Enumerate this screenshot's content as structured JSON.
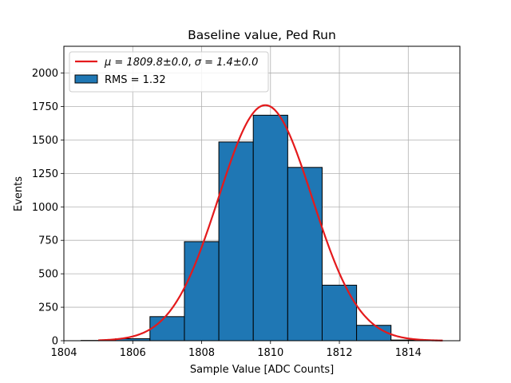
{
  "chart_data": {
    "type": "bar",
    "title": "Baseline value, Ped Run",
    "xlabel": "Sample Value [ADC Counts]",
    "ylabel": "Events",
    "xlim": [
      1804,
      1815.5
    ],
    "ylim": [
      0,
      2200
    ],
    "xticks": [
      "1804",
      "1806",
      "1808",
      "1810",
      "1812",
      "1814"
    ],
    "yticks": [
      "0",
      "250",
      "500",
      "750",
      "1000",
      "1250",
      "1500",
      "1750",
      "2000"
    ],
    "grid": true,
    "legend_position": "top-left",
    "histogram": {
      "label": "RMS = 1.32",
      "bins": [
        {
          "x0": 1804.5,
          "x1": 1805.5,
          "count": 2
        },
        {
          "x0": 1805.5,
          "x1": 1806.5,
          "count": 15
        },
        {
          "x0": 1806.5,
          "x1": 1807.5,
          "count": 180
        },
        {
          "x0": 1807.5,
          "x1": 1808.5,
          "count": 740
        },
        {
          "x0": 1808.5,
          "x1": 1809.5,
          "count": 1485
        },
        {
          "x0": 1809.5,
          "x1": 1810.5,
          "count": 1685
        },
        {
          "x0": 1810.5,
          "x1": 1811.5,
          "count": 1295
        },
        {
          "x0": 1811.5,
          "x1": 1812.5,
          "count": 415
        },
        {
          "x0": 1812.5,
          "x1": 1813.5,
          "count": 115
        },
        {
          "x0": 1813.5,
          "x1": 1814.5,
          "count": 5
        }
      ],
      "color": "#1f77b4"
    },
    "fit": {
      "label_mu": "μ = 1809.8±0.0",
      "label_sigma": "σ = 1.4±0.0",
      "mu": 1809.85,
      "sigma": 1.36,
      "amplitude": 1760,
      "x_range": [
        1805,
        1815
      ],
      "color": "#e41a1c"
    }
  }
}
